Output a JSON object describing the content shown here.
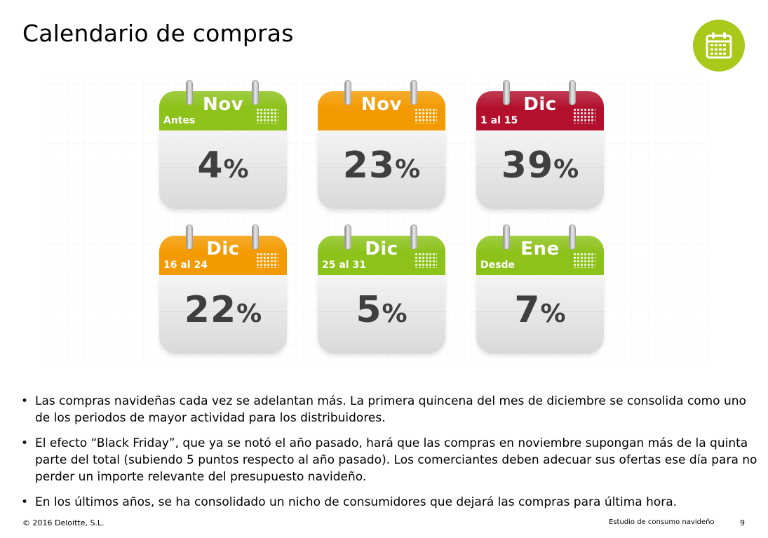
{
  "title": "Calendario de compras",
  "colors": {
    "green": "#8cc21a",
    "orange": "#f39a00",
    "red": "#b2102c",
    "badge": "#a8c81a"
  },
  "badge_icon": "calendar-icon",
  "calendars": [
    {
      "month": "Nov",
      "sub": "Antes",
      "value": "4",
      "unit": "%",
      "color": "green"
    },
    {
      "month": "Nov",
      "sub": "",
      "value": "23",
      "unit": "%",
      "color": "orange"
    },
    {
      "month": "Dic",
      "sub": "1 al 15",
      "value": "39",
      "unit": "%",
      "color": "red"
    },
    {
      "month": "Dic",
      "sub": "16 al 24",
      "value": "22",
      "unit": "%",
      "color": "orange"
    },
    {
      "month": "Dic",
      "sub": "25 al 31",
      "value": "5",
      "unit": "%",
      "color": "green"
    },
    {
      "month": "Ene",
      "sub": "Desde",
      "value": "7",
      "unit": "%",
      "color": "green"
    }
  ],
  "bullet_symbol": "•",
  "bullets": [
    "Las compras navideñas cada vez se adelantan más. La primera quincena del mes de diciembre se consolida como uno de los periodos de mayor actividad para los distribuidores.",
    "El efecto “Black Friday”, que ya se notó el año pasado, hará que las compras en noviembre supongan más de la quinta parte del total (subiendo 5 puntos respecto al año pasado). Los comerciantes deben adecuar sus ofertas ese día para no perder un importe relevante del presupuesto navideño.",
    "En los últimos años, se ha consolidado un nicho de consumidores que dejará las compras para última hora."
  ],
  "footer": {
    "copyright": "© 2016 Deloitte, S.L.",
    "report": "Estudio de consumo navideño",
    "page": "9"
  }
}
